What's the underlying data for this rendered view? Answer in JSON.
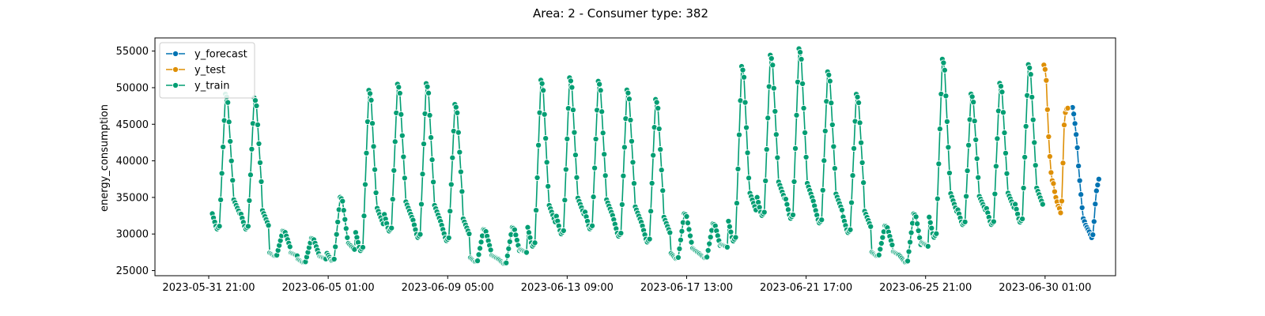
{
  "chart_data": {
    "type": "line",
    "title": "Area: 2 - Consumer type: 382",
    "xlabel": "",
    "ylabel": "energy_consumption",
    "x_type": "datetime",
    "x_range": [
      "2023-05-30 00:00",
      "2023-07-02 12:00"
    ],
    "ylim": [
      24300,
      56800
    ],
    "y_ticks": [
      25000,
      30000,
      35000,
      40000,
      45000,
      50000,
      55000
    ],
    "x_ticks": [
      "2023-05-31 21:00",
      "2023-06-05 01:00",
      "2023-06-09 05:00",
      "2023-06-13 09:00",
      "2023-06-17 13:00",
      "2023-06-21 17:00",
      "2023-06-25 21:00",
      "2023-06-30 01:00"
    ],
    "grid": false,
    "legend": "top-left",
    "series": [
      {
        "name": "y_forecast",
        "color": "#0173b2",
        "start": "2023-07-01 00:00",
        "step_hours": 1,
        "values": [
          47300,
          46400,
          45100,
          43600,
          41800,
          39300,
          37300,
          35400,
          33600,
          32100,
          31700,
          31200,
          30900,
          30600,
          30300,
          29900,
          29500,
          29900,
          31700,
          34100,
          35900,
          36700,
          37500
        ]
      },
      {
        "name": "y_test",
        "color": "#de8f05",
        "start": "2023-06-30 00:00",
        "step_hours": 1,
        "values": [
          53100,
          52500,
          51000,
          47000,
          43300,
          40600,
          38400,
          37300,
          36900,
          35800,
          35000,
          34400,
          33800,
          33500,
          32900,
          34500,
          39700,
          44900,
          46600,
          47100,
          47200
        ]
      },
      {
        "name": "y_train",
        "color": "#029e73",
        "start": "2023-06-01 00:00",
        "step_hours": 1,
        "peaks": [
          {
            "day": "2023-06-01",
            "trough": 30500,
            "peak": 49500
          },
          {
            "day": "2023-06-02",
            "trough": 30500,
            "peak": 49000
          },
          {
            "day": "2023-06-03",
            "trough": 27000,
            "peak": 30500
          },
          {
            "day": "2023-06-04",
            "trough": 26100,
            "peak": 29500
          },
          {
            "day": "2023-06-05",
            "trough": 26300,
            "peak": 35200
          },
          {
            "day": "2023-06-06",
            "trough": 27500,
            "peak": 50100
          },
          {
            "day": "2023-06-07",
            "trough": 30200,
            "peak": 50900
          },
          {
            "day": "2023-06-08",
            "trough": 29300,
            "peak": 51000
          },
          {
            "day": "2023-06-09",
            "trough": 28900,
            "peak": 48100
          },
          {
            "day": "2023-06-10",
            "trough": 26200,
            "peak": 30700
          },
          {
            "day": "2023-06-11",
            "trough": 25900,
            "peak": 31000
          },
          {
            "day": "2023-06-12",
            "trough": 28100,
            "peak": 51500
          },
          {
            "day": "2023-06-13",
            "trough": 29800,
            "peak": 51800
          },
          {
            "day": "2023-06-14",
            "trough": 30500,
            "peak": 51300
          },
          {
            "day": "2023-06-15",
            "trough": 29500,
            "peak": 50100
          },
          {
            "day": "2023-06-16",
            "trough": 28700,
            "peak": 48800
          },
          {
            "day": "2023-06-17",
            "trough": 26600,
            "peak": 32900
          },
          {
            "day": "2023-06-18",
            "trough": 26700,
            "peak": 31500
          },
          {
            "day": "2023-06-19",
            "trough": 28800,
            "peak": 53400
          },
          {
            "day": "2023-06-20",
            "trough": 32300,
            "peak": 54900
          },
          {
            "day": "2023-06-21",
            "trough": 31900,
            "peak": 55800
          },
          {
            "day": "2023-06-22",
            "trough": 31300,
            "peak": 52600
          },
          {
            "day": "2023-06-23",
            "trough": 30000,
            "peak": 49500
          },
          {
            "day": "2023-06-24",
            "trough": 27000,
            "peak": 31200
          },
          {
            "day": "2023-06-25",
            "trough": 26100,
            "peak": 32900
          },
          {
            "day": "2023-06-26",
            "trough": 29300,
            "peak": 54400
          },
          {
            "day": "2023-06-27",
            "trough": 31100,
            "peak": 49500
          },
          {
            "day": "2023-06-28",
            "trough": 31100,
            "peak": 51000
          },
          {
            "day": "2023-06-29",
            "trough": 31400,
            "peak": 53600
          }
        ]
      }
    ]
  }
}
